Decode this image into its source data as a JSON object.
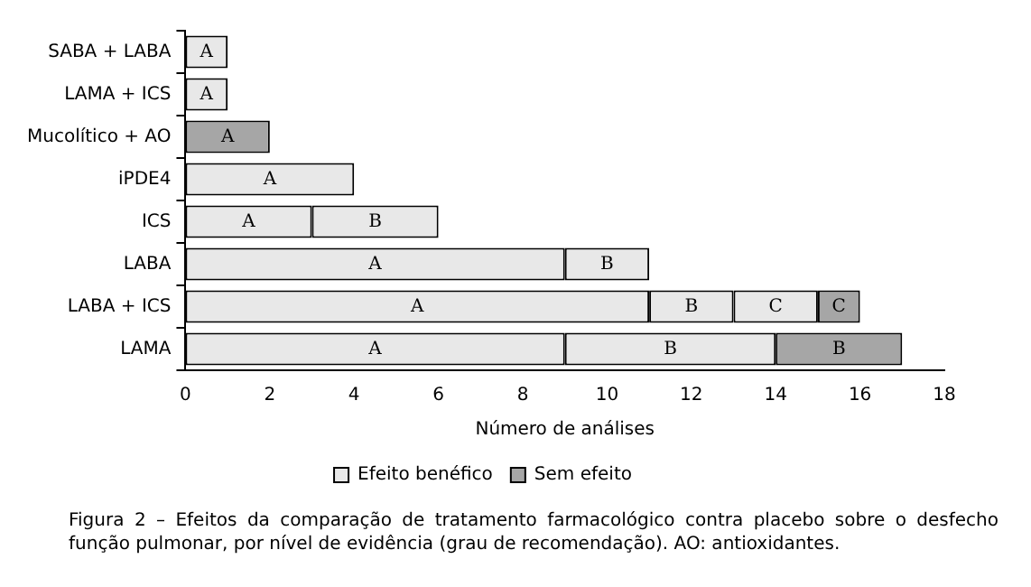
{
  "chart_data": {
    "type": "bar",
    "orientation": "horizontal",
    "stacked": true,
    "categories": [
      "SABA + LABA",
      "LAMA + ICS",
      "Mucolítico + AO",
      "iPDE4",
      "ICS",
      "LABA",
      "LABA + ICS",
      "LAMA"
    ],
    "series": [
      {
        "name": "Efeito benéfico",
        "color": "#e8e8e8",
        "values": [
          1,
          1,
          null,
          4,
          3,
          9,
          11,
          9
        ],
        "value_labels": [
          "A",
          "A",
          null,
          "A",
          "A",
          "A",
          "A",
          "A"
        ]
      },
      {
        "color": "#e8e8e8",
        "values": [
          null,
          null,
          null,
          null,
          3,
          2,
          2,
          5
        ],
        "value_labels": [
          null,
          null,
          null,
          null,
          "B",
          "B",
          "B",
          "B"
        ]
      },
      {
        "color": "#e8e8e8",
        "values": [
          null,
          null,
          null,
          null,
          null,
          null,
          2,
          null
        ],
        "value_labels": [
          null,
          null,
          null,
          null,
          null,
          null,
          "C",
          null
        ]
      },
      {
        "name": "Sem efeito",
        "color": "#a6a6a6",
        "values": [
          null,
          null,
          2,
          null,
          null,
          null,
          null,
          null
        ],
        "value_labels": [
          null,
          null,
          "A",
          null,
          null,
          null,
          null,
          null
        ]
      },
      {
        "color": "#a6a6a6",
        "values": [
          null,
          null,
          null,
          null,
          null,
          null,
          null,
          3
        ],
        "value_labels": [
          null,
          null,
          null,
          null,
          null,
          null,
          null,
          "B"
        ]
      },
      {
        "color": "#a6a6a6",
        "values": [
          null,
          null,
          null,
          null,
          null,
          null,
          1,
          null
        ],
        "value_labels": [
          null,
          null,
          null,
          null,
          null,
          null,
          "C",
          null
        ]
      }
    ],
    "xlim": [
      0,
      18
    ],
    "xticks": [
      0,
      2,
      4,
      6,
      8,
      10,
      12,
      14,
      16,
      18
    ],
    "xlabel": "Número de análises",
    "grid": false,
    "legend": "bottom",
    "annotations": [
      "Figura 2 – Efeitos da comparação de tratamento farmacológico contra placebo sobre o desfecho função pulmonar, por nível de evidência (grau de recomendação). AO: antioxidantes."
    ]
  }
}
